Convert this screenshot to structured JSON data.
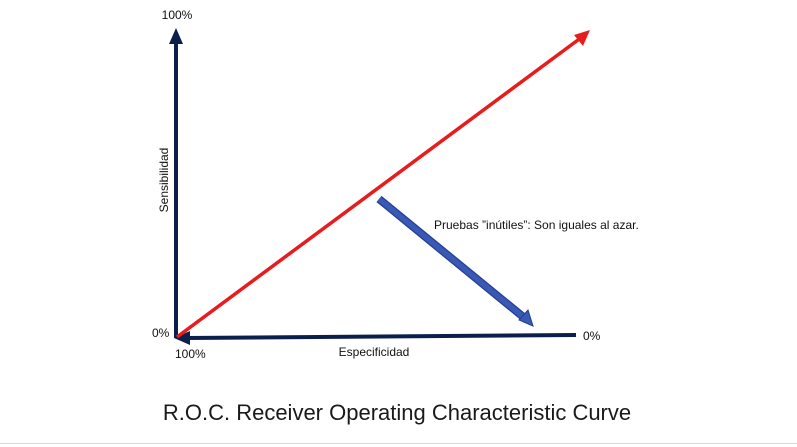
{
  "diagram": {
    "y_axis_top_label": "100%",
    "y_axis_title": "Sensibilidad",
    "origin_label": "0%",
    "x_axis_left_label": "100%",
    "x_axis_right_label": "0%",
    "x_axis_title": "Especificidad",
    "annotation": "Pruebas ”inútiles”: Son iguales al azar.",
    "title": "R.O.C.  Receiver Operating Characteristic Curve",
    "colors": {
      "axes": "#0b1f4d",
      "diagonal": "#e81c1c",
      "pointer": "#3a58b5",
      "pointer_outline": "#24408f"
    }
  }
}
